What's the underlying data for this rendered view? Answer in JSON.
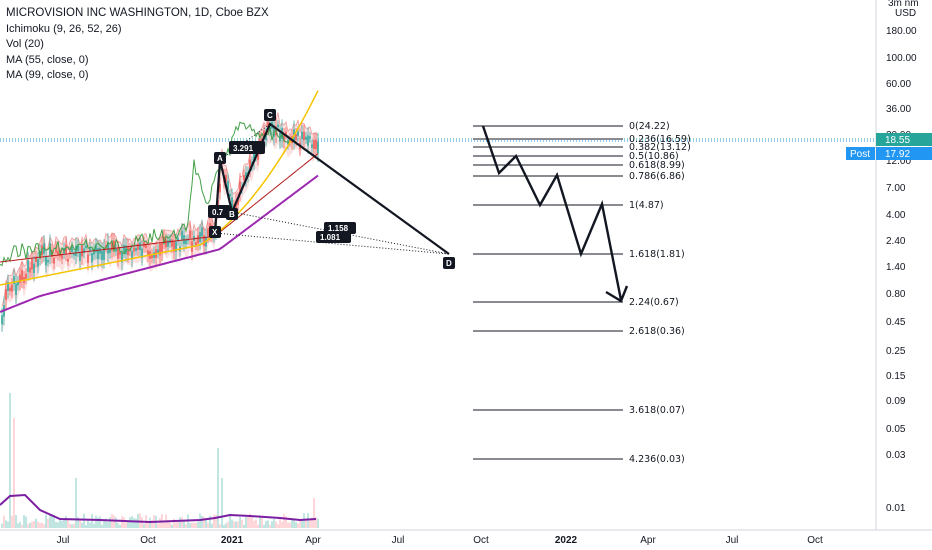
{
  "legend": {
    "title": "MICROVISION INC WASHINGTON, 1D, Cboe BZX",
    "ichimoku": "Ichimoku (9, 26, 52, 26)",
    "vol": "Vol (20)",
    "ma1": "MA (55, close, 0)",
    "ma2": "MA (99, close, 0)"
  },
  "price_axis": {
    "header_top": "3m nm",
    "currency": "USD",
    "ticks": [
      "180.00",
      "100.00",
      "60.00",
      "36.00",
      "20.00",
      "12.00",
      "7.00",
      "4.00",
      "2.40",
      "1.40",
      "0.80",
      "0.45",
      "0.25",
      "0.15",
      "0.09",
      "0.05",
      "0.03",
      "0.01"
    ],
    "last_price": "18.55",
    "post_label": "Post",
    "post_price": "17.92",
    "last_color": "#26a69a",
    "post_color": "#2196f3"
  },
  "time_axis": {
    "ticks": [
      "Jul",
      "Oct",
      "2021",
      "Apr",
      "Jul",
      "Oct",
      "2022",
      "Apr",
      "Jul",
      "Oct"
    ]
  },
  "pattern": {
    "points": [
      "X",
      "A",
      "B",
      "C",
      "D"
    ],
    "ab_ratio": "0.7",
    "bc_ratio": "3.291",
    "xd_ratio_1": "1.158",
    "xd_ratio_2": "1.081"
  },
  "fib_levels": [
    {
      "label": "0(24.22)"
    },
    {
      "label": "0.236(16.59)"
    },
    {
      "label": "0.382(13.12)"
    },
    {
      "label": "0.5(10.86)"
    },
    {
      "label": "0.618(8.99)"
    },
    {
      "label": "0.786(6.86)"
    },
    {
      "label": "1(4.87)"
    },
    {
      "label": "1.618(1.81)"
    },
    {
      "label": "2.24(0.67)"
    },
    {
      "label": "2.618(0.36)"
    },
    {
      "label": "3.618(0.07)"
    },
    {
      "label": "4.236(0.03)"
    }
  ],
  "colors": {
    "ma55": "#f5c400",
    "ma99": "#9c27b0",
    "ichimoku_lagging": "#43a047",
    "ichimoku_base": "#b71c1c",
    "candle_up": "#26a69a",
    "candle_down": "#ef5350",
    "volume_line": "#7b1fa2"
  }
}
